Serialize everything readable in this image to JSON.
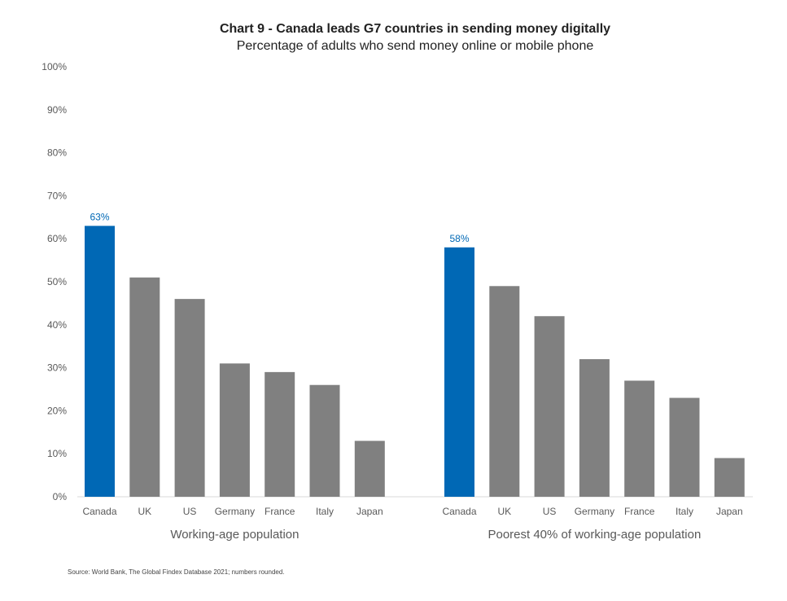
{
  "chart_data": {
    "type": "bar",
    "title": "Chart 9 - Canada leads G7 countries in sending money digitally",
    "subtitle": "Percentage of adults who send money online or mobile phone",
    "source": "Source: World Bank, The Global Findex Database 2021; numbers rounded.",
    "ylim": [
      0,
      100
    ],
    "yticks": [
      "0%",
      "10%",
      "20%",
      "30%",
      "40%",
      "50%",
      "60%",
      "70%",
      "80%",
      "90%",
      "100%"
    ],
    "grid": false,
    "colors": {
      "highlight": "#0068b5",
      "default": "#808080",
      "label": "#0068b5"
    },
    "groups": [
      {
        "name": "Working-age population",
        "categories": [
          "Canada",
          "UK",
          "US",
          "Germany",
          "France",
          "Italy",
          "Japan"
        ],
        "values": [
          63,
          51,
          46,
          31,
          29,
          26,
          13
        ],
        "data_labels": {
          "Canada": "63%"
        }
      },
      {
        "name": "Poorest 40% of working-age population",
        "categories": [
          "Canada",
          "UK",
          "US",
          "Germany",
          "France",
          "Italy",
          "Japan"
        ],
        "values": [
          58,
          49,
          42,
          32,
          27,
          23,
          9
        ],
        "data_labels": {
          "Canada": "58%"
        }
      }
    ]
  }
}
